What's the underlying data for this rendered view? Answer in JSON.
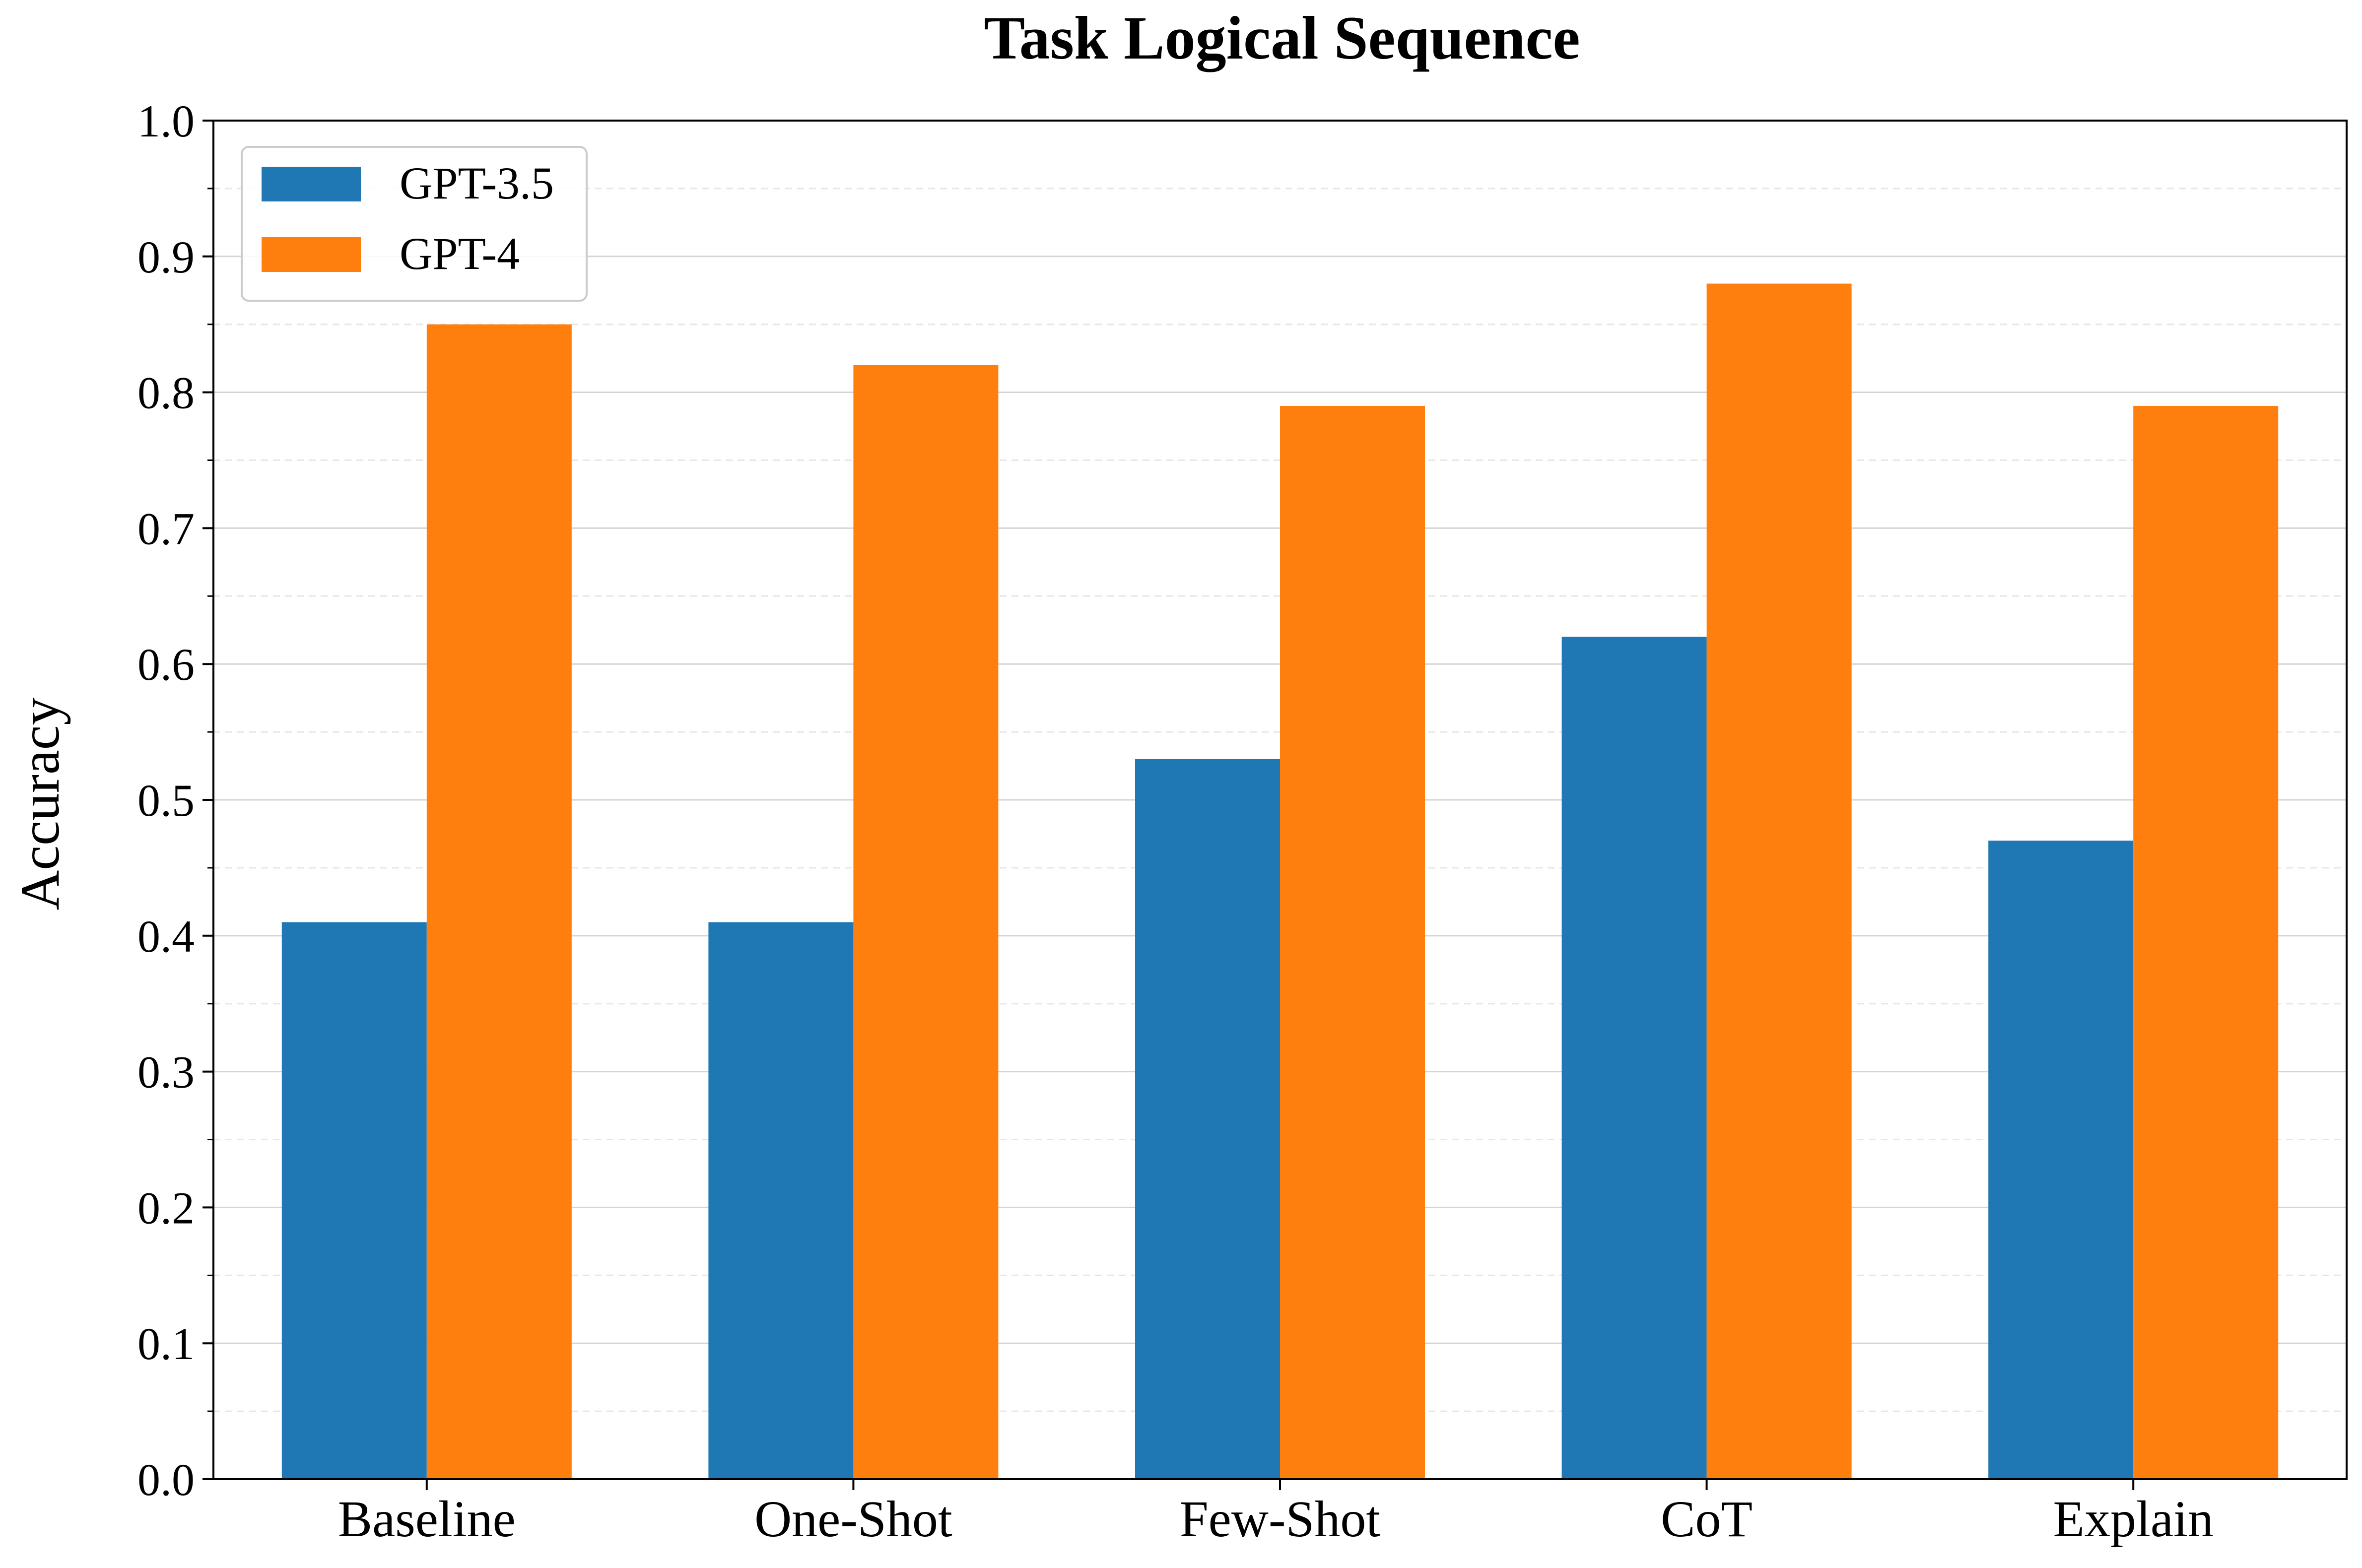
{
  "chart_data": {
    "type": "bar",
    "title": "Task Logical Sequence",
    "xlabel": "",
    "ylabel": "Accuracy",
    "categories": [
      "Baseline",
      "One-Shot",
      "Few-Shot",
      "CoT",
      "Explain"
    ],
    "series": [
      {
        "name": "GPT-3.5",
        "color": "#1f77b4",
        "values": [
          0.41,
          0.41,
          0.53,
          0.62,
          0.47
        ]
      },
      {
        "name": "GPT-4",
        "color": "#ff7f0e",
        "values": [
          0.85,
          0.82,
          0.79,
          0.88,
          0.79
        ]
      }
    ],
    "ylim": [
      0,
      1.0
    ],
    "yticks": [
      "0.0",
      "0.1",
      "0.2",
      "0.3",
      "0.4",
      "0.5",
      "0.6",
      "0.7",
      "0.8",
      "0.9",
      "1.0"
    ],
    "grid": {
      "major": true,
      "minor_dashed": true
    },
    "legend": "top-left"
  }
}
